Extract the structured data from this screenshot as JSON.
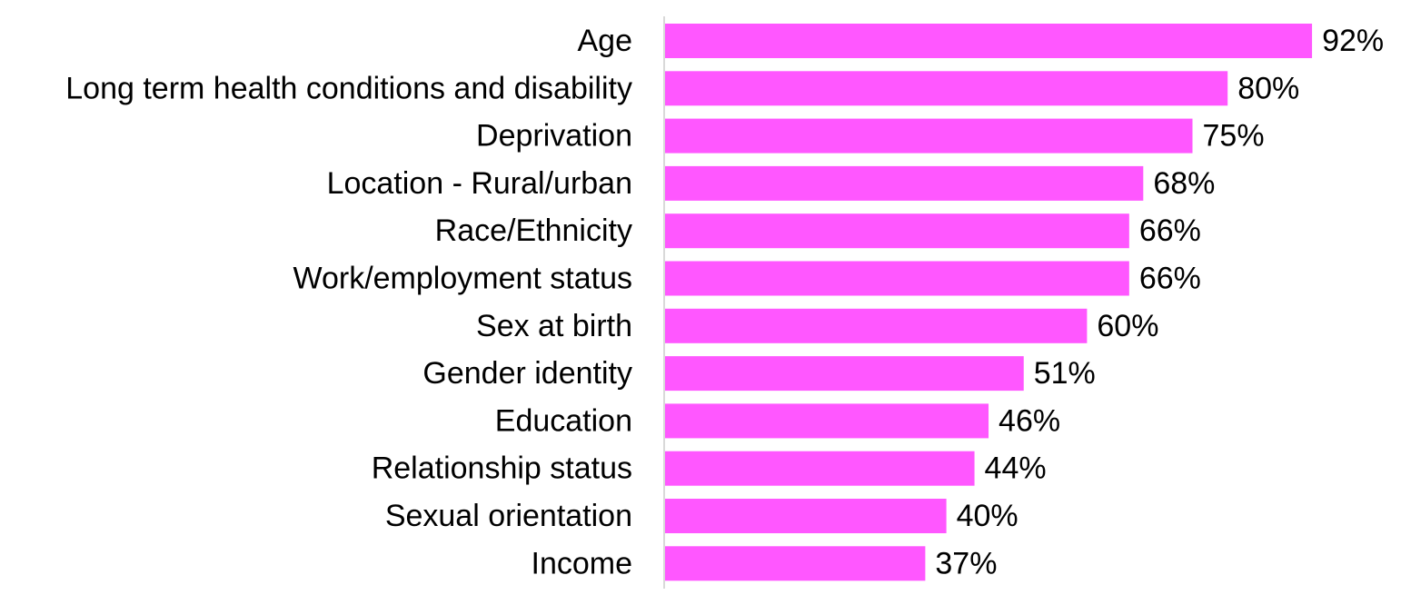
{
  "chart_data": {
    "type": "bar",
    "orientation": "horizontal",
    "categories": [
      "Age",
      "Long term health conditions and disability",
      "Deprivation",
      "Location - Rural/urban",
      "Race/Ethnicity",
      "Work/employment status",
      "Sex at birth",
      "Gender identity",
      "Education",
      "Relationship status",
      "Sexual orientation",
      "Income"
    ],
    "values": [
      92,
      80,
      75,
      68,
      66,
      66,
      60,
      51,
      46,
      44,
      40,
      37
    ],
    "value_labels": [
      "92%",
      "80%",
      "75%",
      "68%",
      "66%",
      "66%",
      "60%",
      "51%",
      "46%",
      "44%",
      "40%",
      "37%"
    ],
    "unit": "%",
    "xlim": [
      0,
      100
    ],
    "grid": false,
    "legend": "none",
    "colors": {
      "bar": "#ff57ff",
      "axis": "#d9d9d9",
      "text": "#000000"
    }
  }
}
